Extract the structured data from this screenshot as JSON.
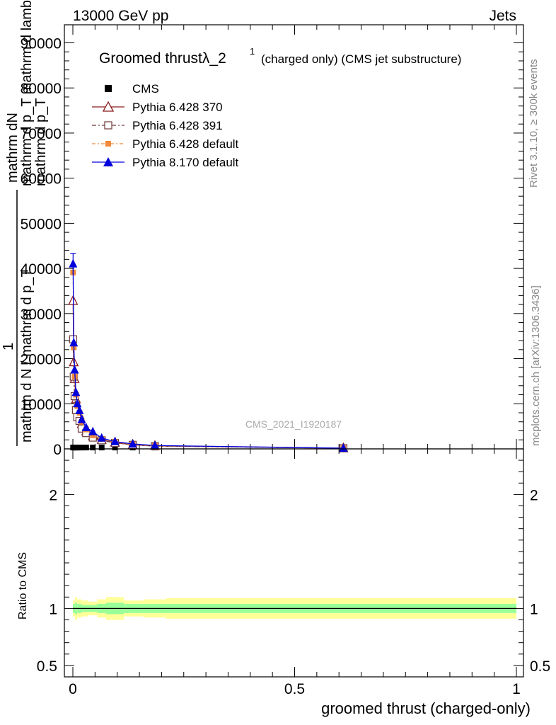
{
  "header": {
    "left": "13000 GeV pp",
    "right": "Jets"
  },
  "side_labels": {
    "rivet": "Rivet 3.1.10, ≥ 300k events",
    "mcplots": "mcplots.cern.ch [arXiv:1306.3436]"
  },
  "watermark": "CMS_2021_I1920187",
  "chart_data": [
    {
      "type": "line",
      "title_main": "Groomed thrustλ_2",
      "title_sup": "1",
      "title_rest": "(charged only) (CMS jet substructure)",
      "ylabel_top": "mathrm d",
      "ylabel_stack": [
        "1",
        "mathrm d N / mathrm d p_T mathrm d mathrm d p_T mathrm d lambda"
      ],
      "ylabel_lines": [
        "mathrm dN",
        "mathrm d p_T mathrm d lambda",
        "mathrm d p_T",
        "1",
        "mathrm d N / mathrm d p_T"
      ],
      "xlim": [
        0,
        1
      ],
      "ylim": [
        0,
        94000
      ],
      "y_ticks": [
        {
          "v": 0,
          "label": "0"
        },
        {
          "v": 10000,
          "label": "10000"
        },
        {
          "v": 20000,
          "label": "20000"
        },
        {
          "v": 30000,
          "label": "30000"
        },
        {
          "v": 40000,
          "label": "40000"
        },
        {
          "v": 50000,
          "label": "50000"
        },
        {
          "v": 60000,
          "label": "60000"
        },
        {
          "v": 70000,
          "label": "70000"
        },
        {
          "v": 80000,
          "label": "80000"
        },
        {
          "v": 90000,
          "label": "90000"
        }
      ],
      "legend_position": "top-left",
      "series": [
        {
          "name": "CMS",
          "color": "#000000",
          "marker": "square-filled",
          "x": [
            0.0005,
            0.002,
            0.004,
            0.007,
            0.01,
            0.015,
            0.02,
            0.03,
            0.045,
            0.065,
            0.095,
            0.135,
            0.185,
            0.61
          ],
          "y": [
            300,
            300,
            300,
            300,
            300,
            300,
            300,
            300,
            300,
            300,
            300,
            300,
            300,
            100
          ]
        },
        {
          "name": "Pythia 6.428 370",
          "color": "#8b1a1a",
          "marker": "triangle-open",
          "x": [
            0.0005,
            0.002,
            0.004,
            0.007,
            0.01,
            0.015,
            0.02,
            0.03,
            0.045,
            0.065,
            0.095,
            0.135,
            0.185,
            0.61
          ],
          "y": [
            32800,
            19200,
            15500,
            11000,
            9000,
            7500,
            5500,
            3900,
            2800,
            2000,
            1400,
            900,
            650,
            150
          ]
        },
        {
          "name": "Pythia 6.428 391",
          "color": "#6e3a3a",
          "marker": "square-open",
          "x": [
            0.0005,
            0.002,
            0.004,
            0.007,
            0.01,
            0.015,
            0.02,
            0.03,
            0.045,
            0.065,
            0.095,
            0.135,
            0.185,
            0.61
          ],
          "y": [
            24300,
            16000,
            11700,
            8600,
            7000,
            6200,
            4500,
            3500,
            2500,
            1900,
            1300,
            900,
            600,
            150
          ]
        },
        {
          "name": "Pythia 6.428 default",
          "color": "#f08a3a",
          "marker": "square-filled-small",
          "x": [
            0.0005,
            0.002,
            0.004,
            0.007,
            0.01,
            0.015,
            0.02,
            0.03,
            0.045,
            0.065,
            0.095,
            0.135,
            0.185,
            0.61
          ],
          "y": [
            39100,
            22500,
            16000,
            12000,
            9500,
            8000,
            6000,
            4300,
            3000,
            2200,
            1500,
            1000,
            700,
            150
          ]
        },
        {
          "name": "Pythia 8.170 default",
          "color": "#0000dd",
          "marker": "triangle-filled",
          "x": [
            0.0005,
            0.002,
            0.004,
            0.007,
            0.01,
            0.015,
            0.02,
            0.03,
            0.045,
            0.065,
            0.095,
            0.135,
            0.185,
            0.61
          ],
          "y": [
            41000,
            23500,
            17500,
            12500,
            10000,
            8500,
            6500,
            4700,
            3800,
            2400,
            1600,
            1100,
            750,
            150
          ]
        }
      ]
    },
    {
      "type": "area",
      "ylabel": "Ratio to CMS",
      "xlabel": "groomed thrust (charged-only)",
      "xlim": [
        0,
        1
      ],
      "ylim": [
        0.4,
        2.4
      ],
      "x_ticks": [
        {
          "v": 0,
          "label": "0"
        },
        {
          "v": 0.5,
          "label": "0.5"
        },
        {
          "v": 1,
          "label": "1"
        }
      ],
      "y_ticks": [
        {
          "v": 0.5,
          "label": "0.5"
        },
        {
          "v": 1,
          "label": "1"
        },
        {
          "v": 2,
          "label": "2"
        }
      ],
      "band_edges": [
        0,
        0.005,
        0.01,
        0.02,
        0.035,
        0.055,
        0.075,
        0.115,
        0.16,
        0.21,
        1.0
      ],
      "band_stat": [
        [
          0.93,
          1.07
        ],
        [
          0.9,
          1.1
        ],
        [
          0.92,
          1.08
        ],
        [
          0.93,
          1.07
        ],
        [
          0.94,
          1.06
        ],
        [
          0.92,
          1.08
        ],
        [
          0.9,
          1.1
        ],
        [
          0.93,
          1.07
        ],
        [
          0.92,
          1.08
        ],
        [
          0.91,
          1.09
        ]
      ],
      "band_green": [
        [
          0.96,
          1.04
        ],
        [
          0.95,
          1.05
        ],
        [
          0.96,
          1.04
        ],
        [
          0.97,
          1.03
        ],
        [
          0.97,
          1.03
        ],
        [
          0.96,
          1.04
        ],
        [
          0.95,
          1.05
        ],
        [
          0.96,
          1.04
        ],
        [
          0.96,
          1.04
        ],
        [
          0.96,
          1.04
        ]
      ],
      "colors": {
        "yellow_band": "#ffff99",
        "green_band": "#99ff99"
      },
      "reference": 1
    }
  ]
}
